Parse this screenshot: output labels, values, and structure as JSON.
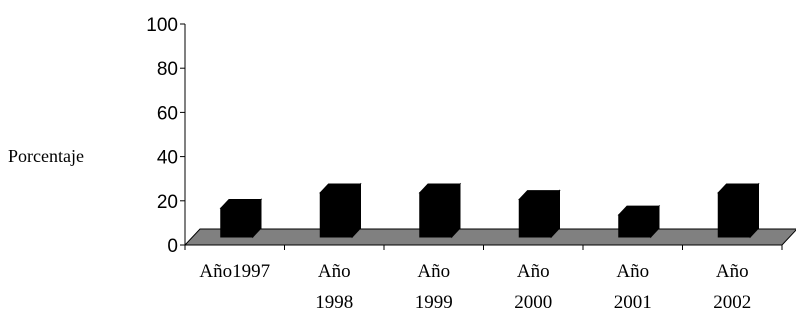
{
  "chart_data": {
    "type": "bar",
    "title": "",
    "xlabel": "",
    "ylabel": "Porcentaje",
    "ylim": [
      0,
      100
    ],
    "yticks": [
      "0",
      "20",
      "40",
      "60",
      "80",
      "100"
    ],
    "categories": [
      [
        "Año1997"
      ],
      [
        "Año",
        "1998"
      ],
      [
        "Año",
        "1999"
      ],
      [
        "Año",
        "2000"
      ],
      [
        "Año",
        "2001"
      ],
      [
        "Año",
        "2002"
      ]
    ],
    "values": [
      13,
      20,
      20,
      17,
      10,
      20
    ],
    "grid": false,
    "legend": "none",
    "colors": {
      "bar": "#000000",
      "floor": "#808080",
      "axis": "#000000"
    }
  }
}
